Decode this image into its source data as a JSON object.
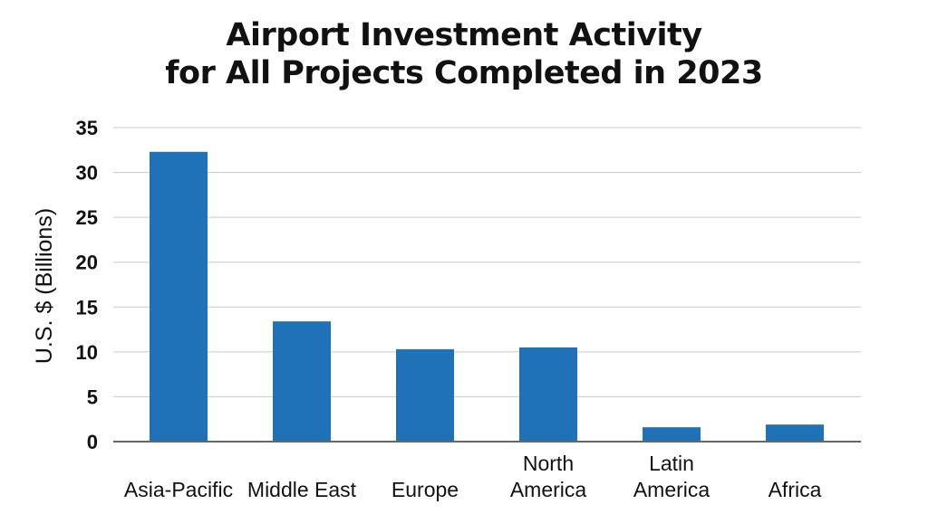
{
  "chart_data": {
    "type": "bar",
    "title_lines": [
      "Airport Investment Activity",
      "for All Projects Completed in 2023"
    ],
    "categories": [
      [
        "Asia-Pacific"
      ],
      [
        "Middle East"
      ],
      [
        "Europe"
      ],
      [
        "North",
        "America"
      ],
      [
        "Latin",
        "America"
      ],
      [
        "Africa"
      ]
    ],
    "values": [
      32.3,
      13.4,
      10.3,
      10.5,
      1.6,
      1.9
    ],
    "xlabel": "",
    "ylabel": "U.S. $ (Billions)",
    "ylim": [
      0,
      35
    ],
    "yticks": [
      0,
      5,
      10,
      15,
      20,
      25,
      30,
      35
    ],
    "grid": true,
    "legend": "none",
    "bar_color": "#1f72b8",
    "grid_color": "#c8c8c8",
    "axis_color": "#666666"
  }
}
